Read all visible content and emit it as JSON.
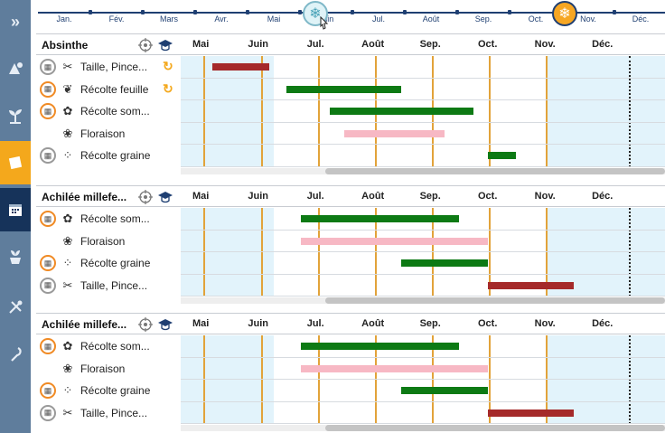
{
  "timeline": {
    "months": [
      "Jan.",
      "Fév.",
      "Mars",
      "Avr.",
      "Mai",
      "Juin",
      "Jul.",
      "Août",
      "Sep.",
      "Oct.",
      "Nov.",
      "Déc."
    ],
    "cold_marker_icon": "cold-weather-icon",
    "frost_marker_icon": "frost-icon"
  },
  "sidebar": {
    "items": [
      {
        "icon": "expand-chevrons-icon"
      },
      {
        "icon": "plant-add-icon"
      },
      {
        "icon": "seedling-icon"
      },
      {
        "icon": "note-icon"
      },
      {
        "icon": "calendar-icon"
      },
      {
        "icon": "pot-icon"
      },
      {
        "icon": "tools-icon"
      },
      {
        "icon": "hook-icon"
      }
    ]
  },
  "month_headers": [
    "Mai",
    "Juin",
    "Jul.",
    "Août",
    "Sep.",
    "Oct.",
    "Nov.",
    "Déc."
  ],
  "colors": {
    "red": "#a52a2a",
    "green": "#0d7a14",
    "pink": "#f7b8c4",
    "orange": "#f08a24"
  },
  "sections": [
    {
      "title": "Absinthe",
      "rows": [
        {
          "label": "Taille, Pince...",
          "icon": "scissors-icon",
          "badge": "grey",
          "refresh": true,
          "bar": {
            "color": "red",
            "start": 4.2,
            "end": 5.2
          }
        },
        {
          "label": "Récolte feuille",
          "icon": "leaf-icon",
          "badge": "orange",
          "refresh": true,
          "bar": {
            "color": "green",
            "start": 5.5,
            "end": 7.5
          }
        },
        {
          "label": "Récolte som...",
          "icon": "flower-top-icon",
          "badge": "orange",
          "refresh": false,
          "bar": {
            "color": "green",
            "start": 6.25,
            "end": 8.75
          }
        },
        {
          "label": "Floraison",
          "icon": "flower-icon",
          "badge": "none",
          "refresh": false,
          "bar": {
            "color": "pink",
            "start": 6.5,
            "end": 8.25
          }
        },
        {
          "label": "Récolte graine",
          "icon": "seeds-icon",
          "badge": "grey",
          "refresh": false,
          "bar": {
            "color": "green",
            "start": 9.0,
            "end": 9.5
          }
        }
      ]
    },
    {
      "title": "Achilée millefe...",
      "rows": [
        {
          "label": "Récolte som...",
          "icon": "flower-top-icon",
          "badge": "orange",
          "refresh": false,
          "bar": {
            "color": "green",
            "start": 5.75,
            "end": 8.5
          }
        },
        {
          "label": "Floraison",
          "icon": "flower-icon",
          "badge": "none",
          "refresh": false,
          "bar": {
            "color": "pink",
            "start": 5.75,
            "end": 9.0
          }
        },
        {
          "label": "Récolte graine",
          "icon": "seeds-icon",
          "badge": "orange",
          "refresh": false,
          "bar": {
            "color": "green",
            "start": 7.5,
            "end": 9.0
          }
        },
        {
          "label": "Taille, Pince...",
          "icon": "scissors-icon",
          "badge": "grey",
          "refresh": false,
          "bar": {
            "color": "red",
            "start": 9.0,
            "end": 10.5
          }
        }
      ]
    },
    {
      "title": "Achilée millefe...",
      "rows": [
        {
          "label": "Récolte som...",
          "icon": "flower-top-icon",
          "badge": "orange",
          "refresh": false,
          "bar": {
            "color": "green",
            "start": 5.75,
            "end": 8.5
          }
        },
        {
          "label": "Floraison",
          "icon": "flower-icon",
          "badge": "none",
          "refresh": false,
          "bar": {
            "color": "pink",
            "start": 5.75,
            "end": 9.0
          }
        },
        {
          "label": "Récolte graine",
          "icon": "seeds-icon",
          "badge": "orange",
          "refresh": false,
          "bar": {
            "color": "green",
            "start": 7.5,
            "end": 9.0
          }
        },
        {
          "label": "Taille, Pince...",
          "icon": "scissors-icon",
          "badge": "grey",
          "refresh": false,
          "bar": {
            "color": "red",
            "start": 9.0,
            "end": 10.5
          }
        }
      ]
    }
  ]
}
